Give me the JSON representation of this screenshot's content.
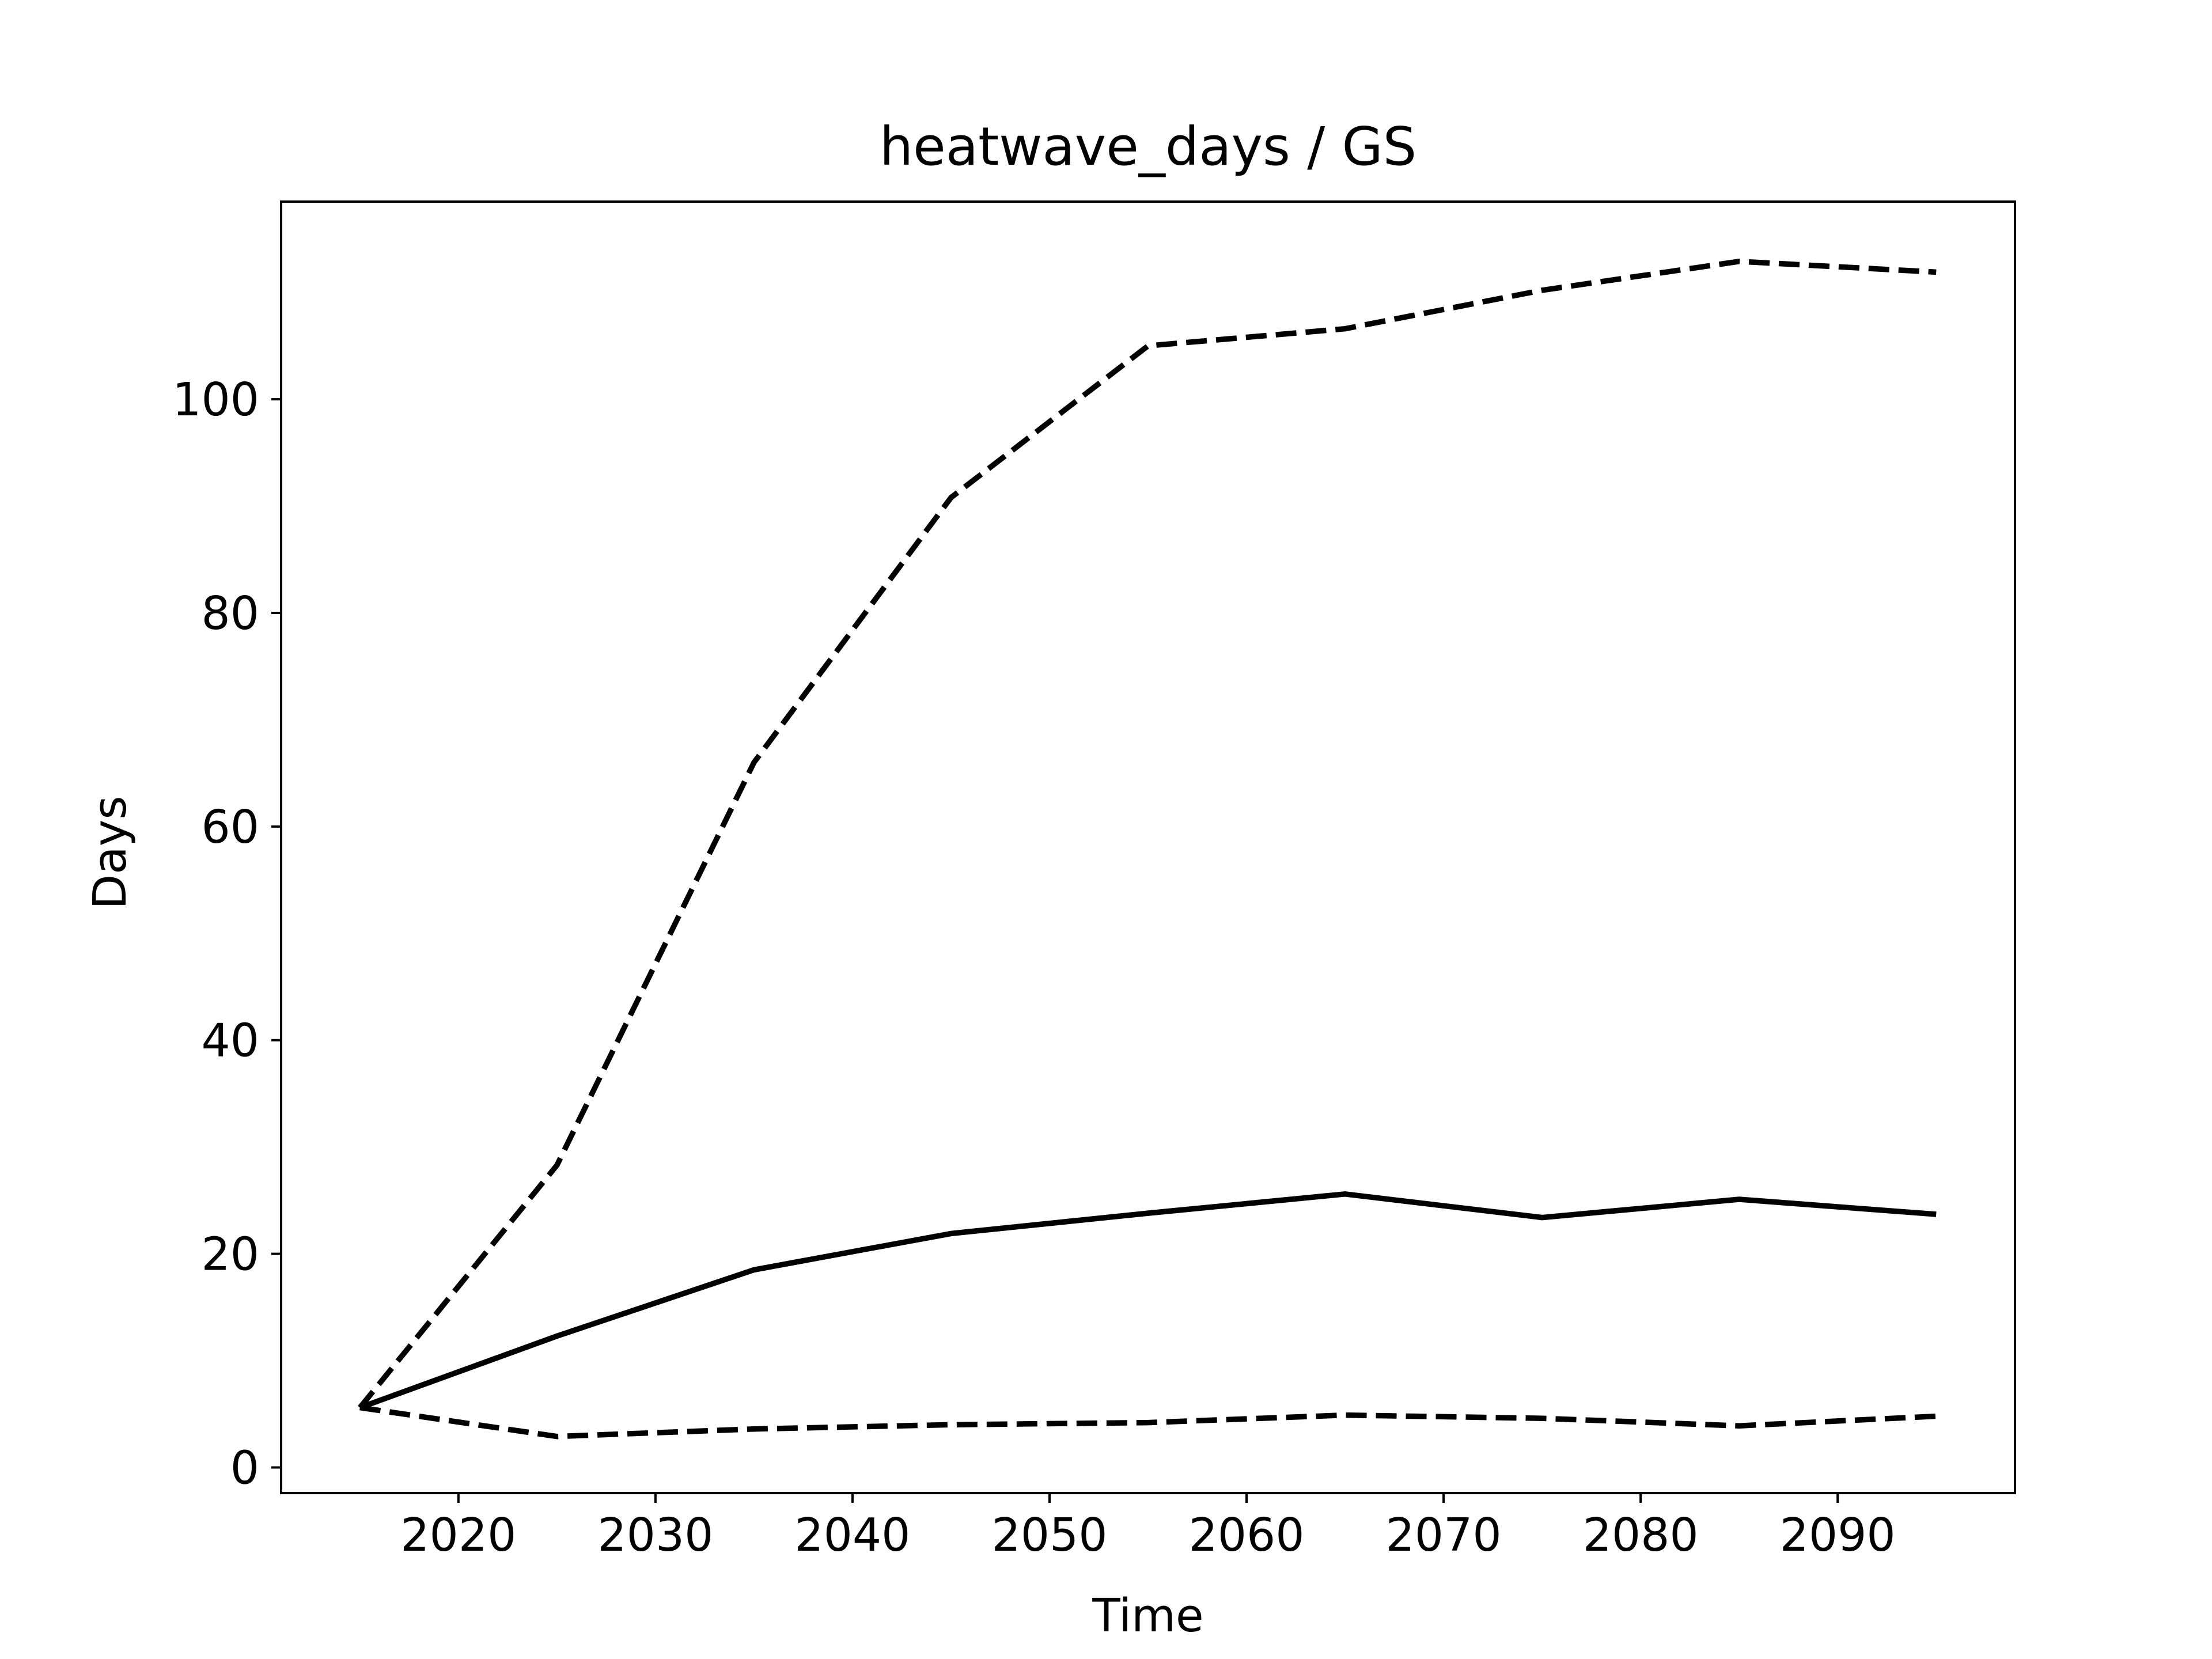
{
  "chart_data": {
    "type": "line",
    "title": "heatwave_days / GS",
    "xlabel": "Time",
    "ylabel": "Days",
    "x": [
      2015,
      2025,
      2035,
      2045,
      2055,
      2065,
      2075,
      2085,
      2095
    ],
    "series": [
      {
        "style": "solid",
        "values": [
          5.6,
          12.3,
          18.5,
          21.9,
          23.8,
          25.6,
          23.4,
          25.1,
          23.7
        ]
      },
      {
        "style": "dashed",
        "values": [
          5.6,
          28.3,
          66.0,
          90.8,
          105.0,
          106.6,
          110.2,
          112.9,
          111.9
        ]
      },
      {
        "style": "dashed",
        "values": [
          5.6,
          2.9,
          3.6,
          4.0,
          4.2,
          4.9,
          4.6,
          3.9,
          4.8
        ]
      }
    ],
    "xticks": [
      "2020",
      "2030",
      "2040",
      "2050",
      "2060",
      "2070",
      "2080",
      "2090"
    ],
    "yticks": [
      "0",
      "20",
      "40",
      "60",
      "80",
      "100"
    ],
    "xlim": [
      2011,
      2099
    ],
    "ylim": [
      -2.4,
      118.5
    ],
    "grid": false,
    "line_color": "#000000"
  }
}
